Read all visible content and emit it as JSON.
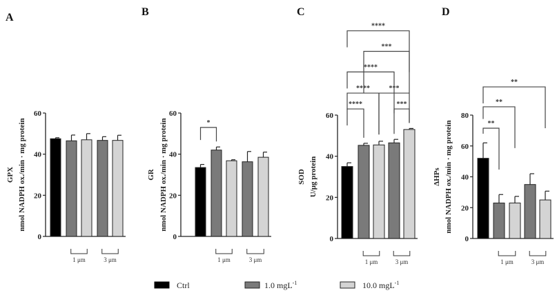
{
  "legend": [
    {
      "label": "Ctrl",
      "sup": "",
      "color": "#000000"
    },
    {
      "label": "1.0 mgL",
      "sup": "-1",
      "color": "#7a7a7a"
    },
    {
      "label": "10.0 mgL",
      "sup": "-1",
      "color": "#d4d4d4"
    }
  ],
  "chart_data": [
    {
      "type": "bar",
      "panel": "A",
      "ylabel": "GPX",
      "ylabel2": "nmol NADPH ox./min · mg protein",
      "ylim": [
        0,
        60
      ],
      "yticks": [
        0,
        20,
        40,
        60
      ],
      "categories": [
        "Ctrl",
        "1 μm 1.0 mgL-1",
        "1 μm 10.0 mgL-1",
        "3 μm 1.0 mgL-1",
        "3 μm 10.0 mgL-1"
      ],
      "values": [
        47.5,
        46.5,
        47,
        46.7,
        46.7
      ],
      "errors": [
        0.5,
        2.8,
        3.0,
        1.8,
        2.5
      ],
      "groups": [
        "1 μm",
        "3 μm"
      ],
      "significance": []
    },
    {
      "type": "bar",
      "panel": "B",
      "ylabel": "GR",
      "ylabel2": "nmol NADPH ox./min · mg protein",
      "ylim": [
        0,
        60
      ],
      "yticks": [
        0,
        20,
        40,
        60
      ],
      "categories": [
        "Ctrl",
        "1 μm 1.0 mgL-1",
        "1 μm 10.0 mgL-1",
        "3 μm 1.0 mgL-1",
        "3 μm 10.0 mgL-1"
      ],
      "values": [
        33.5,
        42,
        36.8,
        36.3,
        38.5
      ],
      "errors": [
        1.5,
        1.5,
        0.5,
        5.0,
        2.5
      ],
      "groups": [
        "1 μm",
        "3 μm"
      ],
      "significance": [
        {
          "from": 0,
          "to": 1,
          "label": "*",
          "at": 53
        }
      ]
    },
    {
      "type": "bar",
      "panel": "C",
      "ylabel": "SOD",
      "ylabel2": "U/μg protein",
      "ylim": [
        0,
        60
      ],
      "yticks": [
        0,
        20,
        40,
        60
      ],
      "categories": [
        "Ctrl",
        "1 μm 1.0 mgL-1",
        "1 μm 10.0 mgL-1",
        "3 μm 1.0 mgL-1",
        "3 μm 10.0 mgL-1"
      ],
      "values": [
        35,
        45.3,
        45.5,
        46.5,
        53
      ],
      "errors": [
        1.8,
        1.0,
        1.8,
        1.7,
        0.5
      ],
      "groups": [
        "1 μm",
        "3 μm"
      ],
      "significance": [
        {
          "from": 0,
          "to": 1,
          "label": "****",
          "at": 63
        },
        {
          "from": 3,
          "to": 4,
          "label": "***",
          "at": 63
        },
        {
          "from": 0,
          "to": 2,
          "label": "****",
          "at": 70.7
        },
        {
          "from": 2,
          "to": 4,
          "label": "***",
          "at": 70.7
        },
        {
          "from": 0,
          "to": 3,
          "label": "****",
          "at": 81
        },
        {
          "from": 1,
          "to": 4,
          "label": "***",
          "at": 91
        },
        {
          "from": 0,
          "to": 4,
          "label": "****",
          "at": 101
        }
      ]
    },
    {
      "type": "bar",
      "panel": "D",
      "ylabel": "ΔHPs",
      "ylabel2": "nmol NADPH ox./min · mg protein",
      "ylim": [
        0,
        80
      ],
      "yticks": [
        0,
        20,
        40,
        60,
        80
      ],
      "categories": [
        "Ctrl",
        "1 μm 1.0 mgL-1",
        "1 μm 10.0 mgL-1",
        "3 μm 1.0 mgL-1",
        "3 μm 10.0 mgL-1"
      ],
      "values": [
        52,
        23,
        23,
        35,
        25
      ],
      "errors": [
        10,
        5.5,
        4.3,
        7,
        5.7
      ],
      "groups": [
        "1 μm",
        "3 μm"
      ],
      "significance": [
        {
          "from": 0,
          "to": 1,
          "label": "**",
          "at": 71.5
        },
        {
          "from": 0,
          "to": 2,
          "label": "**",
          "at": 85.4
        },
        {
          "from": 0,
          "to": 4,
          "label": "**",
          "at": 98.3
        }
      ]
    }
  ]
}
